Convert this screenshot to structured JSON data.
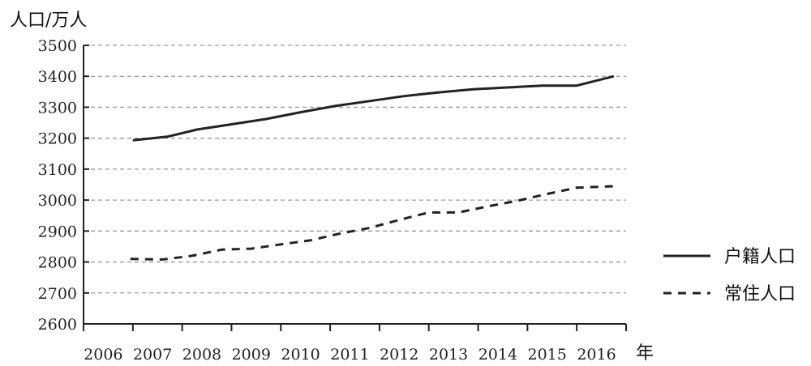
{
  "chart_data": {
    "type": "line",
    "ylabel": "人口/万人",
    "xlabel": "年",
    "categories": [
      "2006",
      "2007",
      "2008",
      "2009",
      "2010",
      "2011",
      "2012",
      "2013",
      "2014",
      "2015",
      "2016"
    ],
    "yticks": [
      "2600",
      "2700",
      "2800",
      "2900",
      "3000",
      "3100",
      "3200",
      "3300",
      "3400",
      "3500"
    ],
    "ylim": [
      2600,
      3500
    ],
    "grid": true,
    "legend_position": "right",
    "series": [
      {
        "name": "户籍人口",
        "style": "solid",
        "color": "#222222",
        "x": [
          2006.6,
          2007.3,
          2007.9,
          2008.6,
          2009.3,
          2010.0,
          2010.7,
          2011.4,
          2012.1,
          2012.8,
          2013.5,
          2014.2,
          2014.9,
          2015.6,
          2016.35
        ],
        "values": [
          3193,
          3205,
          3228,
          3245,
          3262,
          3284,
          3304,
          3320,
          3336,
          3348,
          3358,
          3364,
          3370,
          3370,
          3400
        ]
      },
      {
        "name": "常住人口",
        "style": "dashed",
        "color": "#222222",
        "x": [
          2006.55,
          2007.2,
          2007.8,
          2008.4,
          2009.0,
          2009.6,
          2010.2,
          2010.8,
          2011.4,
          2012.0,
          2012.6,
          2013.2,
          2013.8,
          2014.4,
          2015.0,
          2015.6,
          2016.35
        ],
        "values": [
          2810,
          2808,
          2820,
          2840,
          2843,
          2857,
          2870,
          2892,
          2910,
          2936,
          2960,
          2960,
          2980,
          2998,
          3020,
          3040,
          3045
        ]
      }
    ]
  }
}
